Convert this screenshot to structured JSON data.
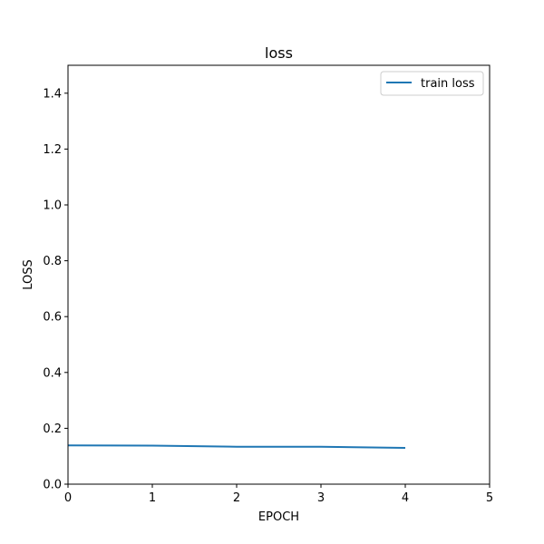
{
  "chart_data": {
    "type": "line",
    "title": "loss",
    "xlabel": "EPOCH",
    "ylabel": "LOSS",
    "xlim": [
      0,
      5
    ],
    "ylim": [
      0,
      1.5
    ],
    "xticks": [
      0,
      1,
      2,
      3,
      4,
      5
    ],
    "xtick_labels": [
      "0",
      "1",
      "2",
      "3",
      "4",
      "5"
    ],
    "yticks": [
      0.0,
      0.2,
      0.4,
      0.6,
      0.8,
      1.0,
      1.2,
      1.4
    ],
    "ytick_labels": [
      "0.0",
      "0.2",
      "0.4",
      "0.6",
      "0.8",
      "1.0",
      "1.2",
      "1.4"
    ],
    "grid": false,
    "legend_position": "top-right",
    "series": [
      {
        "name": "train loss",
        "color": "#1f77b4",
        "x": [
          0,
          1,
          2,
          3,
          4
        ],
        "y": [
          0.139,
          0.138,
          0.134,
          0.134,
          0.13
        ]
      }
    ]
  }
}
